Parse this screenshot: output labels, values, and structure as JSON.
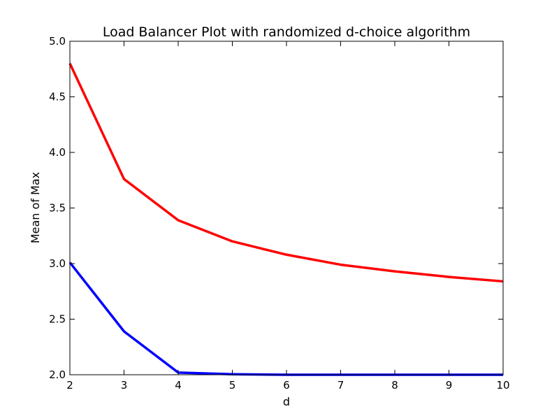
{
  "chart_data": {
    "type": "line",
    "title": "Load Balancer Plot with randomized d-choice algorithm",
    "xlabel": "d",
    "ylabel": "Mean of Max",
    "xlim": [
      2,
      10
    ],
    "ylim": [
      2.0,
      5.0
    ],
    "x_ticks": [
      "2",
      "3",
      "4",
      "5",
      "6",
      "7",
      "8",
      "9",
      "10"
    ],
    "y_ticks": [
      "2.0",
      "2.5",
      "3.0",
      "3.5",
      "4.0",
      "4.5",
      "5.0"
    ],
    "grid": false,
    "legend": "none",
    "x": [
      2,
      3,
      4,
      5,
      6,
      7,
      8,
      9,
      10
    ],
    "series": [
      {
        "color": "#ff0000",
        "values": [
          4.8,
          3.76,
          3.39,
          3.2,
          3.08,
          2.99,
          2.93,
          2.88,
          2.84
        ]
      },
      {
        "color": "#0000ff",
        "values": [
          3.01,
          2.39,
          2.02,
          2.005,
          2.0,
          2.0,
          2.0,
          2.0,
          2.0
        ]
      }
    ]
  }
}
